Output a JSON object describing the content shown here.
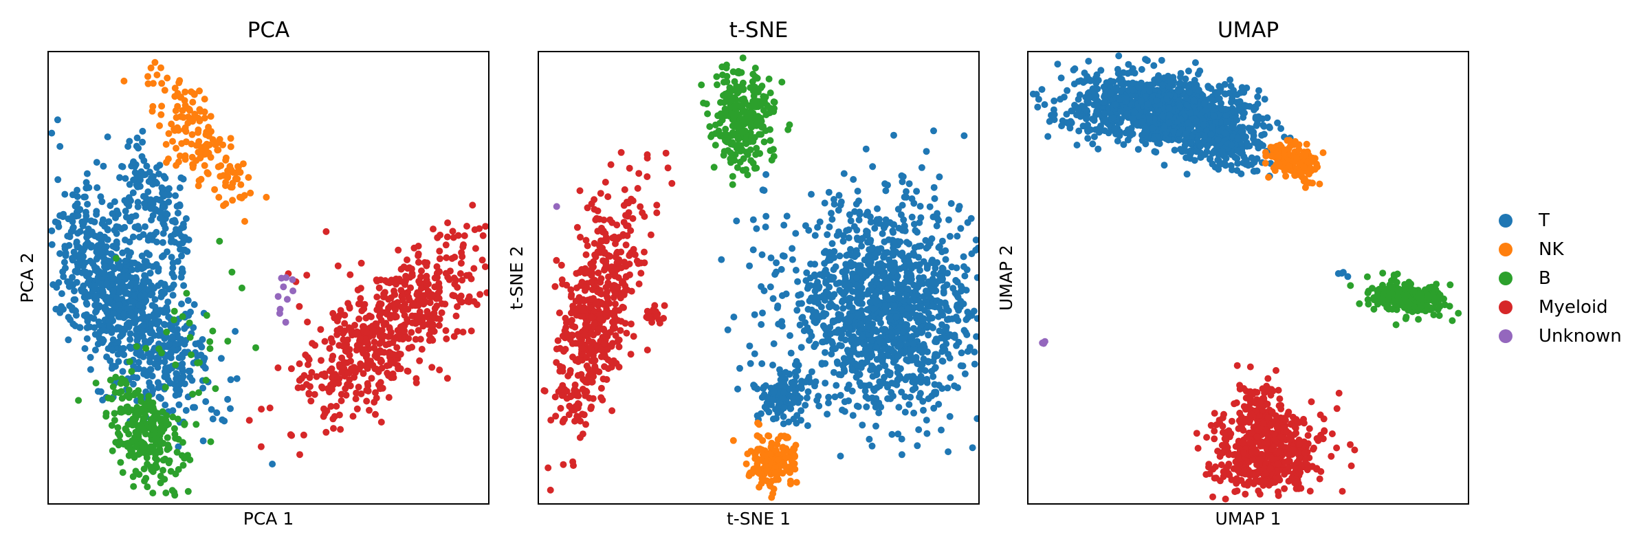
{
  "figure": {
    "panels": [
      {
        "title": "PCA",
        "xlabel": "PCA 1",
        "ylabel": "PCA 2"
      },
      {
        "title": "t-SNE",
        "xlabel": "t-SNE 1",
        "ylabel": "t-SNE 2"
      },
      {
        "title": "UMAP",
        "xlabel": "UMAP 1",
        "ylabel": "UMAP 2"
      }
    ],
    "legend": [
      {
        "label": "T",
        "color": "#1f77b4"
      },
      {
        "label": "NK",
        "color": "#ff7f0e"
      },
      {
        "label": "B",
        "color": "#2ca02c"
      },
      {
        "label": "Myeloid",
        "color": "#d62728"
      },
      {
        "label": "Unknown",
        "color": "#9467bd"
      }
    ]
  },
  "chart_data": [
    {
      "type": "scatter",
      "title": "PCA",
      "xlabel": "PCA 1",
      "ylabel": "PCA 2",
      "grid": false,
      "ticks": false,
      "legend_position": "right (shared)",
      "coord_space": "normalized axes fraction, x 0-1 left-to-right, y 0-1 top-to-bottom",
      "clusters": [
        {
          "label": "T",
          "color": "#1f77b4",
          "n": 900,
          "cx": 0.17,
          "cy": 0.55,
          "sx": 0.06,
          "sy": 0.14,
          "rot": -0.55
        },
        {
          "label": "T",
          "color": "#1f77b4",
          "n": 160,
          "cx": 0.24,
          "cy": 0.33,
          "sx": 0.035,
          "sy": 0.08,
          "rot": -0.5
        },
        {
          "label": "NK",
          "color": "#ff7f0e",
          "n": 160,
          "cx": 0.35,
          "cy": 0.2,
          "sx": 0.035,
          "sy": 0.09,
          "rot": -0.6
        },
        {
          "label": "B",
          "color": "#2ca02c",
          "n": 260,
          "cx": 0.22,
          "cy": 0.84,
          "sx": 0.035,
          "sy": 0.06,
          "rot": -0.4
        },
        {
          "label": "B",
          "color": "#2ca02c",
          "n": 30,
          "cx": 0.33,
          "cy": 0.62,
          "sx": 0.06,
          "sy": 0.09,
          "rot": 0
        },
        {
          "label": "Myeloid",
          "color": "#d62728",
          "n": 520,
          "cx": 0.78,
          "cy": 0.6,
          "sx": 0.05,
          "sy": 0.14,
          "rot": 0.85
        },
        {
          "label": "Myeloid",
          "color": "#d62728",
          "n": 60,
          "cx": 0.68,
          "cy": 0.66,
          "sx": 0.08,
          "sy": 0.1,
          "rot": 0
        },
        {
          "label": "Unknown",
          "color": "#9467bd",
          "n": 10,
          "cx": 0.52,
          "cy": 0.54,
          "sx": 0.025,
          "sy": 0.035,
          "rot": 0
        }
      ]
    },
    {
      "type": "scatter",
      "title": "t-SNE",
      "xlabel": "t-SNE 1",
      "ylabel": "t-SNE 2",
      "grid": false,
      "ticks": false,
      "coord_space": "normalized axes fraction, x 0-1 left-to-right, y 0-1 top-to-bottom",
      "clusters": [
        {
          "label": "T",
          "color": "#1f77b4",
          "n": 1300,
          "cx": 0.78,
          "cy": 0.56,
          "sx": 0.11,
          "sy": 0.11,
          "rot": 0
        },
        {
          "label": "T",
          "color": "#1f77b4",
          "n": 120,
          "cx": 0.55,
          "cy": 0.76,
          "sx": 0.03,
          "sy": 0.03,
          "rot": 0
        },
        {
          "label": "T",
          "color": "#1f77b4",
          "n": 4,
          "cx": 0.51,
          "cy": 0.36,
          "sx": 0.01,
          "sy": 0.04,
          "rot": 0
        },
        {
          "label": "NK",
          "color": "#ff7f0e",
          "n": 160,
          "cx": 0.53,
          "cy": 0.9,
          "sx": 0.025,
          "sy": 0.03,
          "rot": 0
        },
        {
          "label": "B",
          "color": "#2ca02c",
          "n": 260,
          "cx": 0.46,
          "cy": 0.14,
          "sx": 0.035,
          "sy": 0.055,
          "rot": 0
        },
        {
          "label": "Myeloid",
          "color": "#d62728",
          "n": 520,
          "cx": 0.13,
          "cy": 0.58,
          "sx": 0.04,
          "sy": 0.13,
          "rot": 0.25
        },
        {
          "label": "Myeloid",
          "color": "#d62728",
          "n": 20,
          "cx": 0.26,
          "cy": 0.58,
          "sx": 0.012,
          "sy": 0.008,
          "rot": 0
        },
        {
          "label": "Unknown",
          "color": "#9467bd",
          "n": 1,
          "cx": 0.04,
          "cy": 0.34,
          "sx": 0,
          "sy": 0,
          "rot": 0
        }
      ]
    },
    {
      "type": "scatter",
      "title": "UMAP",
      "xlabel": "UMAP 1",
      "ylabel": "UMAP 2",
      "grid": false,
      "ticks": false,
      "coord_space": "normalized axes fraction, x 0-1 left-to-right, y 0-1 top-to-bottom",
      "clusters": [
        {
          "label": "T",
          "color": "#1f77b4",
          "n": 1100,
          "cx": 0.3,
          "cy": 0.13,
          "sx": 0.1,
          "sy": 0.04,
          "rot": 0.1
        },
        {
          "label": "T",
          "color": "#1f77b4",
          "n": 200,
          "cx": 0.45,
          "cy": 0.2,
          "sx": 0.05,
          "sy": 0.03,
          "rot": 0.2
        },
        {
          "label": "T",
          "color": "#1f77b4",
          "n": 4,
          "cx": 0.71,
          "cy": 0.49,
          "sx": 0.006,
          "sy": 0.004,
          "rot": 0
        },
        {
          "label": "NK",
          "color": "#ff7f0e",
          "n": 160,
          "cx": 0.6,
          "cy": 0.24,
          "sx": 0.03,
          "sy": 0.02,
          "rot": 0.3
        },
        {
          "label": "B",
          "color": "#2ca02c",
          "n": 280,
          "cx": 0.86,
          "cy": 0.54,
          "sx": 0.045,
          "sy": 0.017,
          "rot": 0.15
        },
        {
          "label": "Myeloid",
          "color": "#d62728",
          "n": 520,
          "cx": 0.54,
          "cy": 0.88,
          "sx": 0.06,
          "sy": 0.045,
          "rot": 0
        },
        {
          "label": "Myeloid",
          "color": "#d62728",
          "n": 90,
          "cx": 0.52,
          "cy": 0.78,
          "sx": 0.025,
          "sy": 0.035,
          "rot": 0
        },
        {
          "label": "Unknown",
          "color": "#9467bd",
          "n": 6,
          "cx": 0.04,
          "cy": 0.64,
          "sx": 0.005,
          "sy": 0.003,
          "rot": 0
        }
      ]
    }
  ]
}
